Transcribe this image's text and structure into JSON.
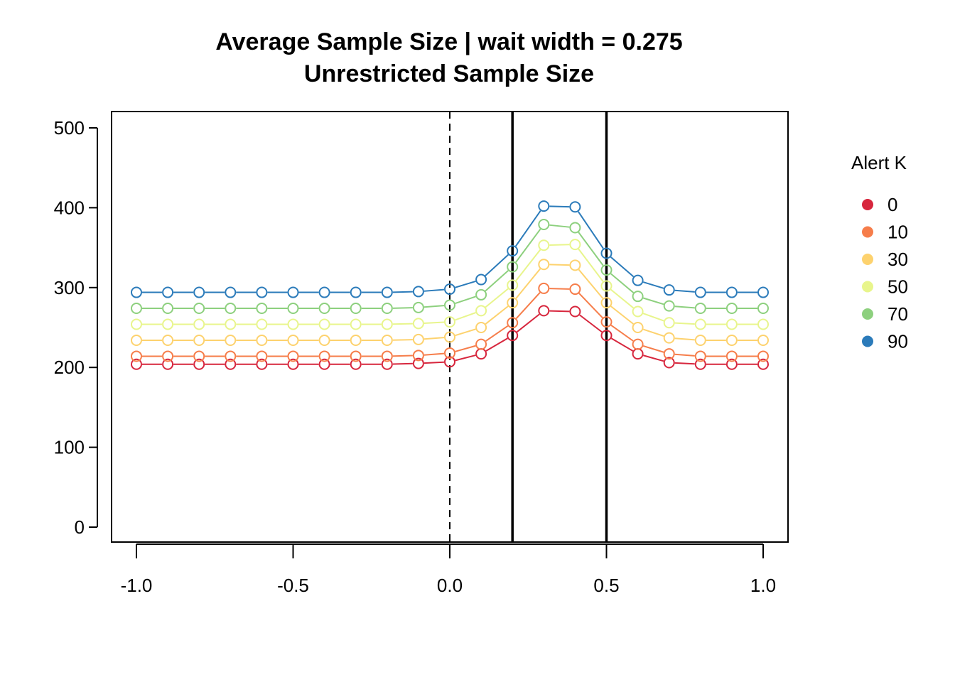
{
  "chart_data": {
    "type": "line",
    "title": "Average Sample Size | wait width = 0.275",
    "subtitle": "Unrestricted Sample Size",
    "xlabel": "",
    "ylabel": "",
    "xlim": [
      -1.0,
      1.0
    ],
    "ylim": [
      0,
      500
    ],
    "x_ticks": [
      "-1.0",
      "-0.5",
      "0.0",
      "0.5",
      "1.0"
    ],
    "y_ticks": [
      "0",
      "100",
      "200",
      "300",
      "400",
      "500"
    ],
    "grid": false,
    "legend": {
      "title": "Alert K",
      "placement": "right"
    },
    "reference_lines": [
      {
        "x": 0.0,
        "style": "dashed"
      },
      {
        "x": 0.2,
        "style": "solid"
      },
      {
        "x": 0.5,
        "style": "solid"
      }
    ],
    "x": [
      -1.0,
      -0.9,
      -0.8,
      -0.7,
      -0.6,
      -0.5,
      -0.4,
      -0.3,
      -0.2,
      -0.1,
      0.0,
      0.1,
      0.2,
      0.3,
      0.4,
      0.5,
      0.6,
      0.7,
      0.8,
      0.9,
      1.0
    ],
    "series": [
      {
        "name": "0",
        "color": "#d7263d",
        "values": [
          204,
          204,
          204,
          204,
          204,
          204,
          204,
          204,
          204,
          205,
          207,
          217,
          240,
          271,
          270,
          240,
          217,
          206,
          204,
          204,
          204
        ]
      },
      {
        "name": "10",
        "color": "#f67d4a",
        "values": [
          214,
          214,
          214,
          214,
          214,
          214,
          214,
          214,
          214,
          215,
          218,
          229,
          256,
          299,
          298,
          257,
          229,
          217,
          214,
          214,
          214
        ]
      },
      {
        "name": "30",
        "color": "#fdd26e",
        "values": [
          234,
          234,
          234,
          234,
          234,
          234,
          234,
          234,
          234,
          235,
          238,
          250,
          281,
          329,
          328,
          281,
          250,
          237,
          234,
          234,
          234
        ]
      },
      {
        "name": "50",
        "color": "#e8f58c",
        "values": [
          254,
          254,
          254,
          254,
          254,
          254,
          254,
          254,
          254,
          255,
          257,
          271,
          303,
          353,
          354,
          302,
          270,
          256,
          254,
          254,
          254
        ]
      },
      {
        "name": "70",
        "color": "#8dd07e",
        "values": [
          274,
          274,
          274,
          274,
          274,
          274,
          274,
          274,
          274,
          275,
          278,
          291,
          326,
          379,
          375,
          322,
          289,
          277,
          274,
          274,
          274
        ]
      },
      {
        "name": "90",
        "color": "#2b7bba",
        "values": [
          294,
          294,
          294,
          294,
          294,
          294,
          294,
          294,
          294,
          295,
          298,
          310,
          346,
          402,
          401,
          343,
          309,
          297,
          294,
          294,
          294
        ]
      }
    ]
  }
}
